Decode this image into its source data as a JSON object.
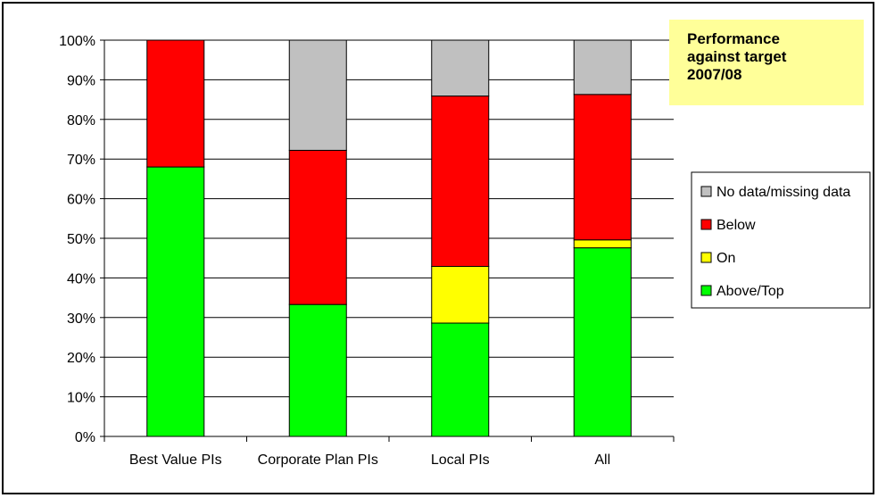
{
  "chart_data": {
    "type": "bar",
    "stacked": true,
    "percent": true,
    "categories": [
      "Best Value PIs",
      "Corporate Plan PIs",
      "Local PIs",
      "All"
    ],
    "series": [
      {
        "name": "Above/Top",
        "color": "#00ff00",
        "values": [
          68,
          33.3,
          28.6,
          47.6
        ]
      },
      {
        "name": "On",
        "color": "#ffff00",
        "values": [
          0,
          0,
          14.3,
          2.0
        ]
      },
      {
        "name": "Below",
        "color": "#ff0000",
        "values": [
          32,
          38.9,
          43.0,
          36.7
        ]
      },
      {
        "name": "No data/missing data",
        "color": "#c0c0c0",
        "values": [
          0,
          27.8,
          14.1,
          13.7
        ]
      }
    ],
    "ylim": [
      0,
      100
    ],
    "yticks": [
      "0%",
      "10%",
      "20%",
      "30%",
      "40%",
      "50%",
      "60%",
      "70%",
      "80%",
      "90%",
      "100%"
    ],
    "grid": true,
    "legend_position": "right",
    "legend_order": [
      "No data/missing data",
      "Below",
      "On",
      "Above/Top"
    ],
    "annotation": {
      "lines": [
        "Performance",
        "against target",
        "2007/08"
      ],
      "background": "#ffff99"
    }
  }
}
